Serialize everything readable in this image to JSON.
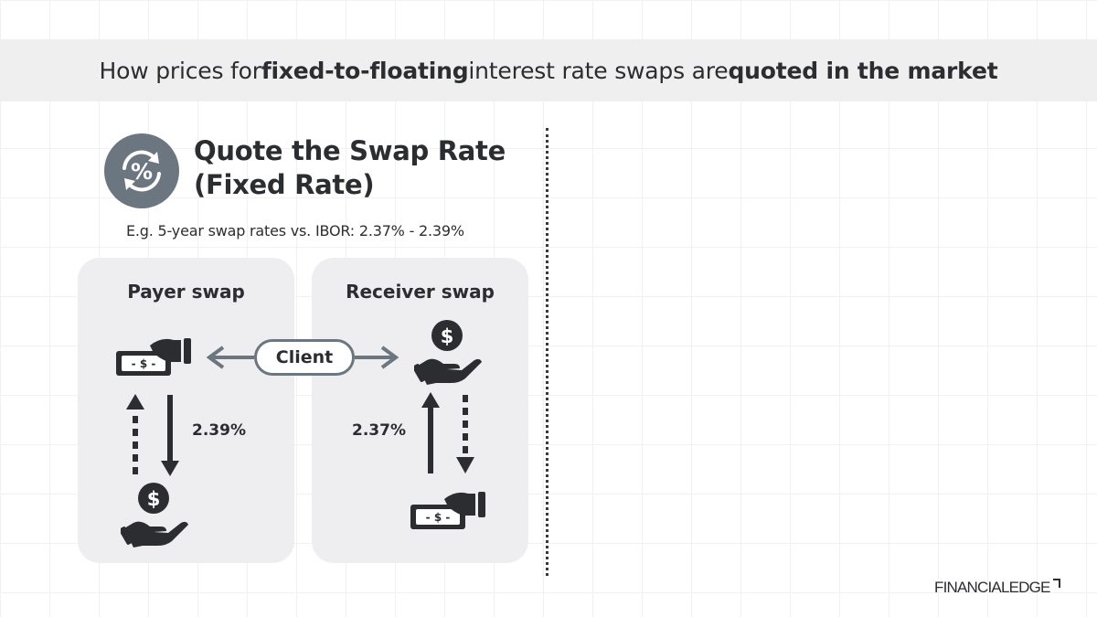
{
  "title": {
    "part1": "How prices for ",
    "bold1": "fixed-to-floating",
    "part2": " interest rate swaps are ",
    "bold2": "quoted in the market"
  },
  "section": {
    "heading_line1": "Quote the Swap Rate",
    "heading_line2": "(Fixed Rate)",
    "example": "E.g. 5-year swap rates vs. IBOR: 2.37% - 2.39%",
    "icon": "percent-exchange-icon"
  },
  "payer": {
    "title": "Payer swap",
    "rate": "2.39%",
    "top_icon": "cash-hand-icon",
    "bottom_icon": "coin-hand-icon"
  },
  "receiver": {
    "title": "Receiver swap",
    "rate": "2.37%",
    "top_icon": "coin-hand-icon",
    "bottom_icon": "cash-hand-icon"
  },
  "client": {
    "label": "Client"
  },
  "colors": {
    "icon": "#2b2d31",
    "accent": "#6b7680",
    "panel": "#eeedf0",
    "band": "#f0eff0"
  },
  "logo": {
    "text": "FINANCIALEDGE"
  }
}
